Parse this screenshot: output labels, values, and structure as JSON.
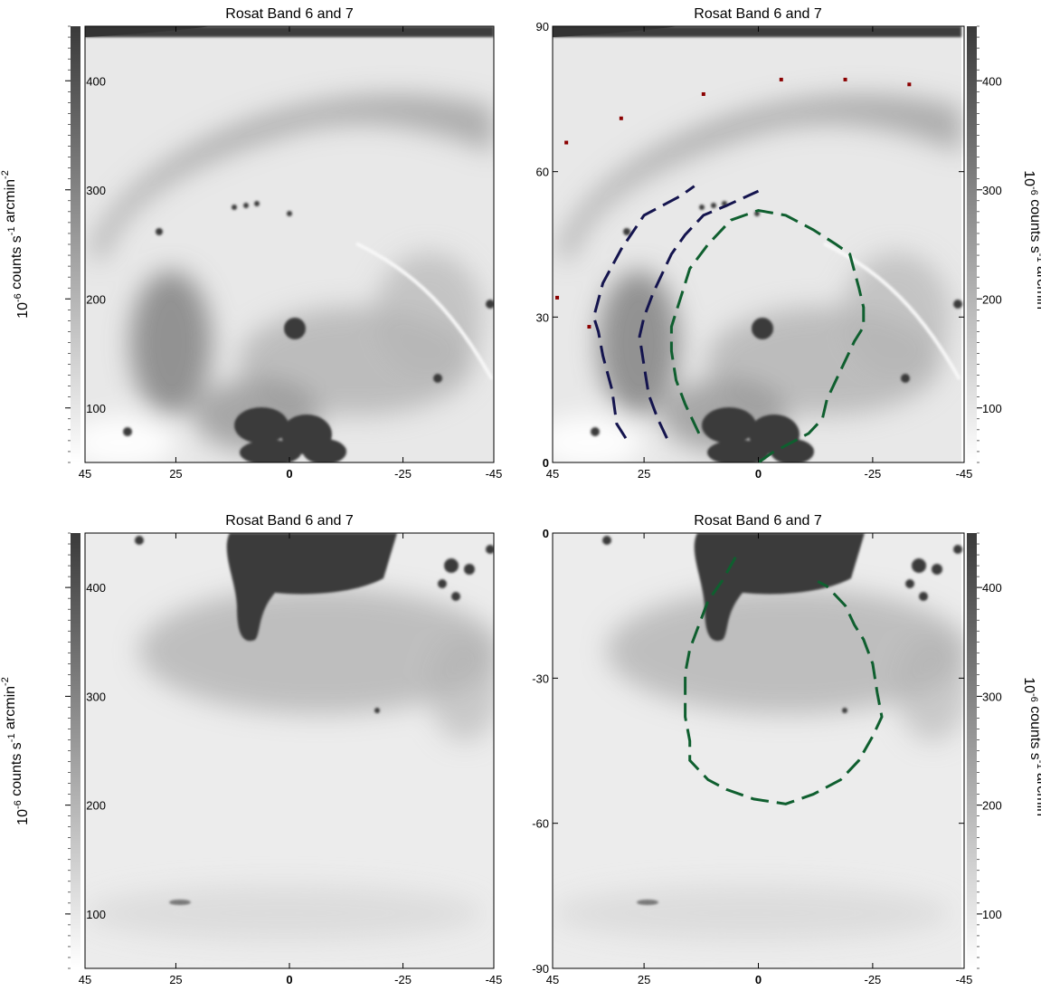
{
  "chart_data": [
    {
      "type": "heatmap",
      "title": "Rosat Band 6 and 7",
      "colorbar": {
        "side": "left",
        "label": "10-6 counts s-1 arcmin-2",
        "ticks": [
          100,
          200,
          300,
          400
        ],
        "range": [
          50,
          450
        ]
      },
      "xlim": [
        45,
        -45
      ],
      "x_ticks": [
        "45",
        "25",
        "0",
        "-25",
        "-45"
      ],
      "y_ticks": [],
      "ylim": [
        0,
        90
      ],
      "overlays": []
    },
    {
      "type": "heatmap",
      "title": "Rosat Band 6 and 7",
      "colorbar": {
        "side": "right",
        "label": "10-6 counts s-1 arcmin-2",
        "ticks": [
          100,
          200,
          300,
          400
        ],
        "range": [
          50,
          450
        ]
      },
      "xlim": [
        45,
        -45
      ],
      "x_ticks": [
        "45",
        "25",
        "0",
        "-25",
        "-45"
      ],
      "y_ticks": [
        "0",
        "30",
        "60",
        "90"
      ],
      "ylim": [
        0,
        90
      ],
      "overlays": [
        {
          "style": "dashed",
          "color": "#14144e",
          "points": [
            [
              29,
              5
            ],
            [
              31,
              8
            ],
            [
              32,
              15
            ],
            [
              34,
              22
            ],
            [
              35,
              27
            ],
            [
              36,
              30
            ],
            [
              34,
              37
            ],
            [
              30,
              44
            ],
            [
              25,
              51
            ],
            [
              21,
              53
            ],
            [
              17,
              55
            ],
            [
              14,
              57
            ]
          ]
        },
        {
          "style": "dashed",
          "color": "#14144e",
          "points": [
            [
              20,
              5
            ],
            [
              22,
              9
            ],
            [
              24,
              14
            ],
            [
              25,
              20
            ],
            [
              26,
              26
            ],
            [
              25,
              30
            ],
            [
              23,
              35
            ],
            [
              21,
              39
            ],
            [
              19,
              43
            ],
            [
              16,
              47
            ],
            [
              12,
              51
            ],
            [
              7,
              53
            ],
            [
              0,
              56
            ]
          ]
        },
        {
          "style": "dashed",
          "color": "#0f5f2f",
          "points": [
            [
              13,
              6
            ],
            [
              16,
              12
            ],
            [
              18,
              17
            ],
            [
              19,
              23
            ],
            [
              19,
              28
            ],
            [
              17,
              34
            ],
            [
              15,
              40
            ],
            [
              11,
              45
            ],
            [
              6,
              50
            ],
            [
              0,
              52
            ],
            [
              -6,
              51
            ],
            [
              -12,
              48
            ],
            [
              -17,
              45
            ],
            [
              -20,
              43
            ],
            [
              -22,
              36
            ],
            [
              -23,
              32
            ],
            [
              -23,
              28
            ],
            [
              -21,
              25
            ],
            [
              -18,
              19
            ],
            [
              -15,
              13
            ],
            [
              -14,
              9
            ],
            [
              -11,
              6
            ],
            [
              -7,
              4
            ],
            [
              -3,
              2
            ],
            [
              0,
              0
            ]
          ]
        },
        {
          "style": "markers",
          "color": "#8b0000",
          "points": [
            [
              42,
              66
            ],
            [
              30,
              71
            ],
            [
              12,
              76
            ],
            [
              -5,
              79
            ],
            [
              -19,
              79
            ],
            [
              -33,
              78
            ],
            [
              44,
              34
            ],
            [
              37,
              28
            ]
          ]
        }
      ]
    },
    {
      "type": "heatmap",
      "title": "Rosat Band 6 and 7",
      "colorbar": {
        "side": "left",
        "label": "10-6 counts s-1 arcmin-2",
        "ticks": [
          100,
          200,
          300,
          400
        ],
        "range": [
          50,
          450
        ]
      },
      "xlim": [
        45,
        -45
      ],
      "x_ticks": [
        "45",
        "25",
        "0",
        "-25",
        "-45"
      ],
      "y_ticks": [],
      "ylim": [
        -90,
        0
      ],
      "overlays": []
    },
    {
      "type": "heatmap",
      "title": "Rosat Band 6 and 7",
      "colorbar": {
        "side": "right",
        "label": "10-6 counts s-1 arcmin-2",
        "ticks": [
          100,
          200,
          300,
          400
        ],
        "range": [
          50,
          450
        ]
      },
      "xlim": [
        45,
        -45
      ],
      "x_ticks": [
        "45",
        "25",
        "0",
        "-25",
        "-45"
      ],
      "y_ticks": [
        "0",
        "-30",
        "-60",
        "-90"
      ],
      "ylim": [
        -90,
        0
      ],
      "overlays": [
        {
          "style": "dashed",
          "color": "#0f5f2f",
          "points": [
            [
              5,
              -5
            ],
            [
              8,
              -10
            ],
            [
              11,
              -14
            ],
            [
              13,
              -19
            ],
            [
              15,
              -24
            ],
            [
              16,
              -29
            ],
            [
              16,
              -34
            ],
            [
              16,
              -38
            ],
            [
              15,
              -43
            ],
            [
              15,
              -47
            ],
            [
              11,
              -51
            ],
            [
              7,
              -53
            ],
            [
              1,
              -55
            ],
            [
              -6,
              -56
            ],
            [
              -12,
              -54
            ],
            [
              -18,
              -51
            ],
            [
              -22,
              -47
            ],
            [
              -25,
              -42
            ],
            [
              -27,
              -38
            ],
            [
              -26,
              -33
            ],
            [
              -25,
              -27
            ],
            [
              -23,
              -22
            ],
            [
              -21,
              -19
            ],
            [
              -19,
              -15
            ],
            [
              -15,
              -11
            ],
            [
              -13,
              -10
            ]
          ]
        }
      ]
    }
  ]
}
